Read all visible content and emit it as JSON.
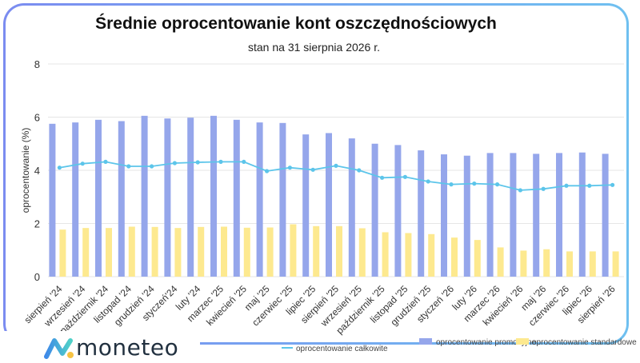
{
  "header": {
    "title": "Średnie oprocentowanie kont oszczędnościowych",
    "subtitle": "stan na 31 sierpnia 2026 r."
  },
  "brand": {
    "name": "moneteo",
    "logo_icon": "moneteo-logo-icon"
  },
  "colors": {
    "promo": "#95a6eb",
    "standard": "#fde98f",
    "total": "#5cc5ea",
    "border_start": "#7b8cf0",
    "border_end": "#6fc0f0"
  },
  "chart_data": {
    "type": "bar",
    "ylabel": "oprocentowanie (%)",
    "xlabel": "",
    "ylim": [
      0,
      8
    ],
    "yticks": [
      0,
      2,
      4,
      6,
      8
    ],
    "grid": true,
    "legend_position": "bottom-right",
    "categories": [
      "sierpień '24",
      "wrzesień '24",
      "październik '24",
      "listopad '24",
      "grudzień '24",
      "styczeń'24",
      "luty '24",
      "marzec '25",
      "kwiecień '25",
      "maj '25",
      "czerwiec '25",
      "lipiec '25",
      "sierpień '25",
      "wrzesień '25",
      "październik '25",
      "listopad '25",
      "grudzień '25",
      "styczeń '26",
      "luty '26",
      "marzec '26",
      "kwiecień '26",
      "maj '26",
      "czerwiec '26",
      "lipiec '26",
      "sierpień '26"
    ],
    "series": [
      {
        "name": "oprocentowanie promocyjne",
        "type": "bar",
        "values": [
          5.75,
          5.8,
          5.9,
          5.85,
          6.05,
          5.95,
          5.98,
          6.05,
          5.9,
          5.8,
          5.78,
          5.35,
          5.4,
          5.2,
          5.0,
          4.95,
          4.75,
          4.6,
          4.55,
          4.65,
          4.65,
          4.62,
          4.65,
          4.67,
          4.62
        ]
      },
      {
        "name": "oprocentowanie standardowe",
        "type": "bar",
        "values": [
          1.77,
          1.83,
          1.83,
          1.88,
          1.87,
          1.83,
          1.87,
          1.88,
          1.84,
          1.85,
          1.97,
          1.9,
          1.9,
          1.82,
          1.67,
          1.64,
          1.6,
          1.47,
          1.38,
          1.1,
          0.98,
          1.03,
          0.95,
          0.95,
          0.95
        ]
      },
      {
        "name": "oprocentowanie całkowite",
        "type": "line",
        "values": [
          4.1,
          4.25,
          4.32,
          4.15,
          4.15,
          4.27,
          4.3,
          4.32,
          4.32,
          3.97,
          4.1,
          4.02,
          4.17,
          4.0,
          3.72,
          3.75,
          3.58,
          3.47,
          3.5,
          3.47,
          3.25,
          3.3,
          3.42,
          3.42,
          3.45
        ]
      }
    ]
  }
}
